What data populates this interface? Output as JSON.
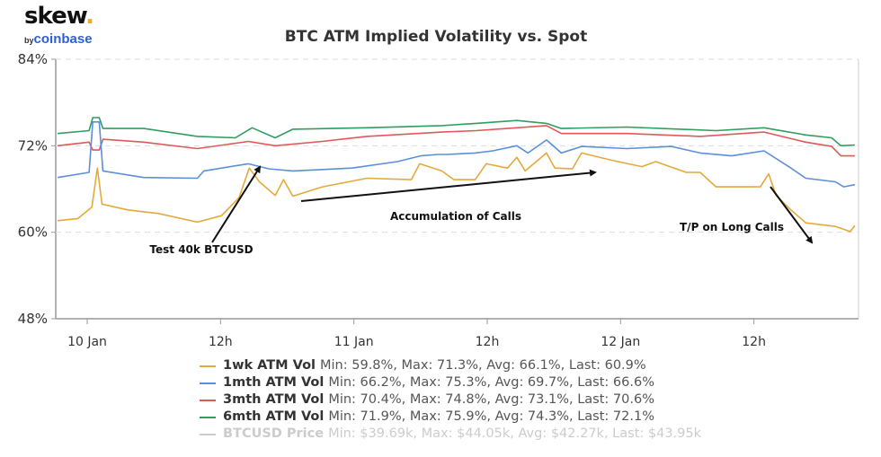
{
  "logo": {
    "brand": "skew",
    "dot": ".",
    "by": "by",
    "parent": "coinbase"
  },
  "chart_data": {
    "type": "line",
    "title": "BTC ATM Implied Volatility vs. Spot",
    "xlabel": "",
    "ylabel": "",
    "x_range": [
      "9 Jan 21:10",
      "12 Jan 21:25"
    ],
    "ylim": [
      48,
      84
    ],
    "y_ticks": [
      "84%",
      "72%",
      "60%",
      "48%"
    ],
    "y_tick_values": [
      84,
      72,
      60,
      48
    ],
    "x_ticks": [
      {
        "label": "10 Jan",
        "at": "10 Jan 00:00"
      },
      {
        "label": "12h",
        "at": "10 Jan 12:00"
      },
      {
        "label": "11 Jan",
        "at": "11 Jan 00:00"
      },
      {
        "label": "12h",
        "at": "11 Jan 12:00"
      },
      {
        "label": "12 Jan",
        "at": "12 Jan 00:00"
      },
      {
        "label": "12h",
        "at": "12 Jan 12:00"
      }
    ],
    "grid": true,
    "legend_placement": "bottom",
    "series": [
      {
        "name": "1wk ATM Vol",
        "stats": "Min: 59.8%, Max: 71.3%, Avg: 66.1%, Last: 60.9%",
        "color": "#e3aa3b",
        "visible": true,
        "points": [
          [
            "9 Jan 21:20",
            61.6
          ],
          [
            "9 Jan 23:10",
            61.9
          ],
          [
            "10 Jan 00:25",
            63.5
          ],
          [
            "10 Jan 00:55",
            68.9
          ],
          [
            "10 Jan 01:20",
            63.9
          ],
          [
            "10 Jan 03:40",
            63.1
          ],
          [
            "10 Jan 06:25",
            62.6
          ],
          [
            "10 Jan 09:55",
            61.4
          ],
          [
            "10 Jan 12:05",
            62.3
          ],
          [
            "10 Jan 13:40",
            64.8
          ],
          [
            "10 Jan 14:35",
            68.9
          ],
          [
            "10 Jan 15:30",
            67.0
          ],
          [
            "10 Jan 16:55",
            65.1
          ],
          [
            "10 Jan 17:40",
            67.3
          ],
          [
            "10 Jan 18:30",
            65.0
          ],
          [
            "10 Jan 21:10",
            66.3
          ],
          [
            "11 Jan 01:10",
            67.5
          ],
          [
            "11 Jan 05:10",
            67.3
          ],
          [
            "11 Jan 05:55",
            69.5
          ],
          [
            "11 Jan 07:55",
            68.5
          ],
          [
            "11 Jan 09:00",
            67.3
          ],
          [
            "11 Jan 10:55",
            67.3
          ],
          [
            "11 Jan 11:55",
            69.5
          ],
          [
            "11 Jan 13:50",
            68.9
          ],
          [
            "11 Jan 14:40",
            70.4
          ],
          [
            "11 Jan 15:25",
            68.5
          ],
          [
            "11 Jan 17:20",
            71.0
          ],
          [
            "11 Jan 18:05",
            68.9
          ],
          [
            "11 Jan 19:40",
            68.8
          ],
          [
            "11 Jan 20:30",
            71.0
          ],
          [
            "11 Jan 23:10",
            70.0
          ],
          [
            "12 Jan 01:55",
            69.1
          ],
          [
            "12 Jan 03:10",
            69.8
          ],
          [
            "12 Jan 05:55",
            68.3
          ],
          [
            "12 Jan 07:10",
            68.3
          ],
          [
            "12 Jan 08:35",
            66.3
          ],
          [
            "12 Jan 12:35",
            66.3
          ],
          [
            "12 Jan 13:20",
            68.1
          ],
          [
            "12 Jan 14:00",
            65.1
          ],
          [
            "12 Jan 15:20",
            63.1
          ],
          [
            "12 Jan 16:40",
            61.3
          ],
          [
            "12 Jan 19:20",
            60.8
          ],
          [
            "12 Jan 20:40",
            60.1
          ],
          [
            "12 Jan 21:05",
            60.9
          ]
        ]
      },
      {
        "name": "1mth ATM Vol",
        "stats": "Min: 66.2%, Max: 75.3%, Avg: 69.7%, Last: 66.6%",
        "color": "#5b8fd9",
        "visible": true,
        "points": [
          [
            "9 Jan 21:20",
            67.6
          ],
          [
            "10 Jan 00:10",
            68.3
          ],
          [
            "10 Jan 00:30",
            75.3
          ],
          [
            "10 Jan 01:05",
            75.3
          ],
          [
            "10 Jan 01:25",
            68.5
          ],
          [
            "10 Jan 05:05",
            67.6
          ],
          [
            "10 Jan 09:55",
            67.5
          ],
          [
            "10 Jan 10:30",
            68.5
          ],
          [
            "10 Jan 14:30",
            69.5
          ],
          [
            "10 Jan 16:20",
            68.8
          ],
          [
            "10 Jan 18:30",
            68.5
          ],
          [
            "10 Jan 23:50",
            68.9
          ],
          [
            "11 Jan 03:55",
            69.8
          ],
          [
            "11 Jan 06:00",
            70.6
          ],
          [
            "11 Jan 07:35",
            70.8
          ],
          [
            "11 Jan 08:25",
            70.8
          ],
          [
            "11 Jan 10:55",
            71.0
          ],
          [
            "11 Jan 12:30",
            71.3
          ],
          [
            "11 Jan 14:40",
            72.0
          ],
          [
            "11 Jan 15:40",
            71.0
          ],
          [
            "11 Jan 17:20",
            72.8
          ],
          [
            "11 Jan 18:40",
            71.0
          ],
          [
            "11 Jan 20:30",
            71.9
          ],
          [
            "12 Jan 00:35",
            71.6
          ],
          [
            "12 Jan 04:35",
            71.9
          ],
          [
            "12 Jan 07:10",
            71.0
          ],
          [
            "12 Jan 10:00",
            70.6
          ],
          [
            "12 Jan 12:55",
            71.3
          ],
          [
            "12 Jan 15:20",
            68.9
          ],
          [
            "12 Jan 16:40",
            67.5
          ],
          [
            "12 Jan 19:20",
            67.0
          ],
          [
            "12 Jan 20:05",
            66.3
          ],
          [
            "12 Jan 21:05",
            66.6
          ]
        ]
      },
      {
        "name": "3mth ATM Vol",
        "stats": "Min: 70.4%, Max: 74.8%, Avg: 73.1%, Last: 70.6%",
        "color": "#e05858",
        "visible": true,
        "points": [
          [
            "9 Jan 21:20",
            72.0
          ],
          [
            "10 Jan 00:10",
            72.5
          ],
          [
            "10 Jan 00:30",
            71.4
          ],
          [
            "10 Jan 01:05",
            71.4
          ],
          [
            "10 Jan 01:25",
            72.9
          ],
          [
            "10 Jan 05:05",
            72.5
          ],
          [
            "10 Jan 09:55",
            71.6
          ],
          [
            "10 Jan 14:30",
            72.6
          ],
          [
            "10 Jan 16:55",
            72.0
          ],
          [
            "10 Jan 21:10",
            72.6
          ],
          [
            "11 Jan 01:10",
            73.3
          ],
          [
            "11 Jan 07:55",
            73.9
          ],
          [
            "11 Jan 11:00",
            74.1
          ],
          [
            "11 Jan 14:40",
            74.5
          ],
          [
            "11 Jan 17:20",
            74.8
          ],
          [
            "11 Jan 18:40",
            73.7
          ],
          [
            "12 Jan 00:35",
            73.7
          ],
          [
            "12 Jan 07:10",
            73.3
          ],
          [
            "12 Jan 12:55",
            73.9
          ],
          [
            "12 Jan 16:40",
            72.5
          ],
          [
            "12 Jan 19:00",
            71.9
          ],
          [
            "12 Jan 19:50",
            70.6
          ],
          [
            "12 Jan 21:05",
            70.6
          ]
        ]
      },
      {
        "name": "6mth ATM Vol",
        "stats": "Min: 71.9%, Max: 75.9%, Avg: 74.3%, Last: 72.1%",
        "color": "#2f9e5e",
        "visible": true,
        "points": [
          [
            "9 Jan 21:20",
            73.7
          ],
          [
            "10 Jan 00:10",
            74.1
          ],
          [
            "10 Jan 00:30",
            75.9
          ],
          [
            "10 Jan 01:05",
            75.9
          ],
          [
            "10 Jan 01:25",
            74.4
          ],
          [
            "10 Jan 05:05",
            74.4
          ],
          [
            "10 Jan 09:55",
            73.3
          ],
          [
            "10 Jan 13:20",
            73.1
          ],
          [
            "10 Jan 14:50",
            74.5
          ],
          [
            "10 Jan 16:55",
            73.1
          ],
          [
            "10 Jan 18:30",
            74.3
          ],
          [
            "11 Jan 01:10",
            74.5
          ],
          [
            "11 Jan 07:55",
            74.8
          ],
          [
            "11 Jan 11:00",
            75.1
          ],
          [
            "11 Jan 14:40",
            75.5
          ],
          [
            "11 Jan 17:20",
            75.1
          ],
          [
            "11 Jan 18:40",
            74.4
          ],
          [
            "12 Jan 00:35",
            74.6
          ],
          [
            "12 Jan 08:35",
            74.1
          ],
          [
            "12 Jan 12:55",
            74.5
          ],
          [
            "12 Jan 16:40",
            73.5
          ],
          [
            "12 Jan 19:00",
            73.1
          ],
          [
            "12 Jan 19:50",
            72.0
          ],
          [
            "12 Jan 21:05",
            72.1
          ]
        ]
      },
      {
        "name": "BTCUSD Price",
        "stats": "Min: $39.69k, Max: $44.05k, Avg: $42.27k, Last: $43.95k",
        "color": "#cccccc",
        "visible": false,
        "points": []
      }
    ],
    "annotations": [
      {
        "text": "Test 40k BTCUSD"
      },
      {
        "text": "Accumulation of Calls"
      },
      {
        "text": "T/P on Long Calls"
      }
    ]
  }
}
